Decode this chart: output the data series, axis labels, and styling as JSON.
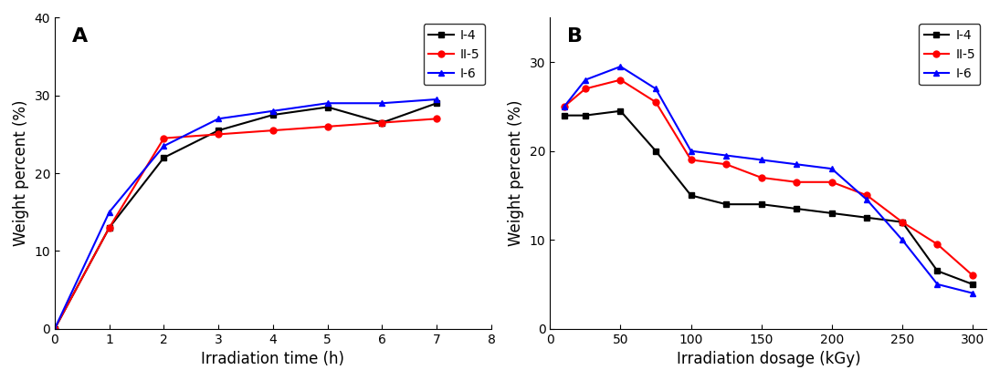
{
  "A": {
    "label": "A",
    "xlabel": "Irradiation time (h)",
    "ylabel": "Weight percent (%)",
    "xlim": [
      0,
      8
    ],
    "ylim": [
      0,
      40
    ],
    "xticks": [
      0,
      1,
      2,
      3,
      4,
      5,
      6,
      7,
      8
    ],
    "yticks": [
      0,
      10,
      20,
      30,
      40
    ],
    "series": [
      {
        "name": "I-4",
        "color": "#000000",
        "marker": "s",
        "x": [
          0,
          1,
          2,
          3,
          4,
          5,
          6,
          7
        ],
        "y": [
          0,
          13,
          22,
          25.5,
          27.5,
          28.5,
          26.5,
          29
        ]
      },
      {
        "name": "II-5",
        "color": "#ff0000",
        "marker": "o",
        "x": [
          0,
          1,
          2,
          3,
          4,
          5,
          6,
          7
        ],
        "y": [
          0,
          13,
          24.5,
          25,
          25.5,
          26,
          26.5,
          27
        ]
      },
      {
        "name": "I-6",
        "color": "#0000ff",
        "marker": "^",
        "x": [
          0,
          1,
          2,
          3,
          4,
          5,
          6,
          7
        ],
        "y": [
          0,
          15,
          23.5,
          27,
          28,
          29,
          29,
          29.5
        ]
      }
    ]
  },
  "B": {
    "label": "B",
    "xlabel": "Irradiation dosage (kGy)",
    "ylabel": "Weight percent (%)",
    "xlim": [
      0,
      310
    ],
    "ylim": [
      0,
      35
    ],
    "xticks": [
      0,
      50,
      100,
      150,
      200,
      250,
      300
    ],
    "yticks": [
      0,
      10,
      20,
      30
    ],
    "series": [
      {
        "name": "I-4",
        "color": "#000000",
        "marker": "s",
        "x": [
          10,
          25,
          50,
          75,
          100,
          125,
          150,
          175,
          200,
          225,
          250,
          275,
          300
        ],
        "y": [
          24,
          24,
          24.5,
          20,
          15,
          14,
          14,
          13.5,
          13,
          12.5,
          12,
          6.5,
          5
        ]
      },
      {
        "name": "II-5",
        "color": "#ff0000",
        "marker": "o",
        "x": [
          10,
          25,
          50,
          75,
          100,
          125,
          150,
          175,
          200,
          225,
          250,
          275,
          300
        ],
        "y": [
          25,
          27,
          28,
          25.5,
          19,
          18.5,
          17,
          16.5,
          16.5,
          15,
          12,
          9.5,
          6
        ]
      },
      {
        "name": "I-6",
        "color": "#0000ff",
        "marker": "^",
        "x": [
          10,
          25,
          50,
          75,
          100,
          125,
          150,
          175,
          200,
          225,
          250,
          275,
          300
        ],
        "y": [
          25,
          28,
          29.5,
          27,
          20,
          19.5,
          19,
          18.5,
          18,
          14.5,
          10,
          5,
          4
        ]
      }
    ]
  }
}
